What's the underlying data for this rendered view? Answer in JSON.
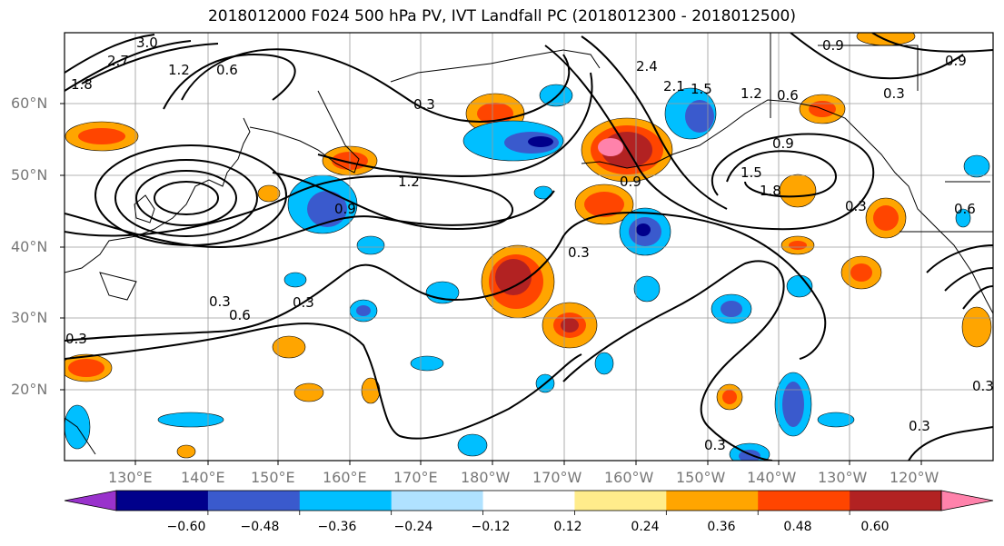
{
  "title": "2018012000 F024 500 hPa PV, IVT Landfall PC (2018012300 - 2018012500)",
  "lat_labels": [
    "60°N",
    "50°N",
    "40°N",
    "30°N",
    "20°N"
  ],
  "lon_labels": [
    "130°E",
    "140°E",
    "150°E",
    "160°E",
    "170°E",
    "180°W",
    "170°W",
    "160°W",
    "150°W",
    "140°W",
    "130°W",
    "120°W"
  ],
  "colorbar": {
    "tick_labels": [
      "−0.60",
      "−0.48",
      "−0.36",
      "−0.24",
      "−0.12",
      "0.12",
      "0.24",
      "0.36",
      "0.48",
      "0.60"
    ],
    "colors": [
      "#9932cc",
      "#00008b",
      "#3a5acd",
      "#00bfff",
      "#b0e2ff",
      "#ffffff",
      "#ffec8b",
      "#ffa500",
      "#ff4500",
      "#b22222",
      "#ff82ab"
    ]
  },
  "contour_labels": [
    "3.0",
    "2.7",
    "1.8",
    "1.2",
    "0.6",
    "0.3",
    "0.9",
    "1.2",
    "0.9",
    "0.3",
    "0.6",
    "0.3",
    "0.3",
    "0.9",
    "1.8",
    "1.5",
    "0.9",
    "0.3",
    "2.4",
    "2.1",
    "1.5",
    "1.2",
    "0.6",
    "0.9",
    "0.3",
    "0.3",
    "0.3",
    "0.6",
    "0.3",
    "0.3"
  ]
}
